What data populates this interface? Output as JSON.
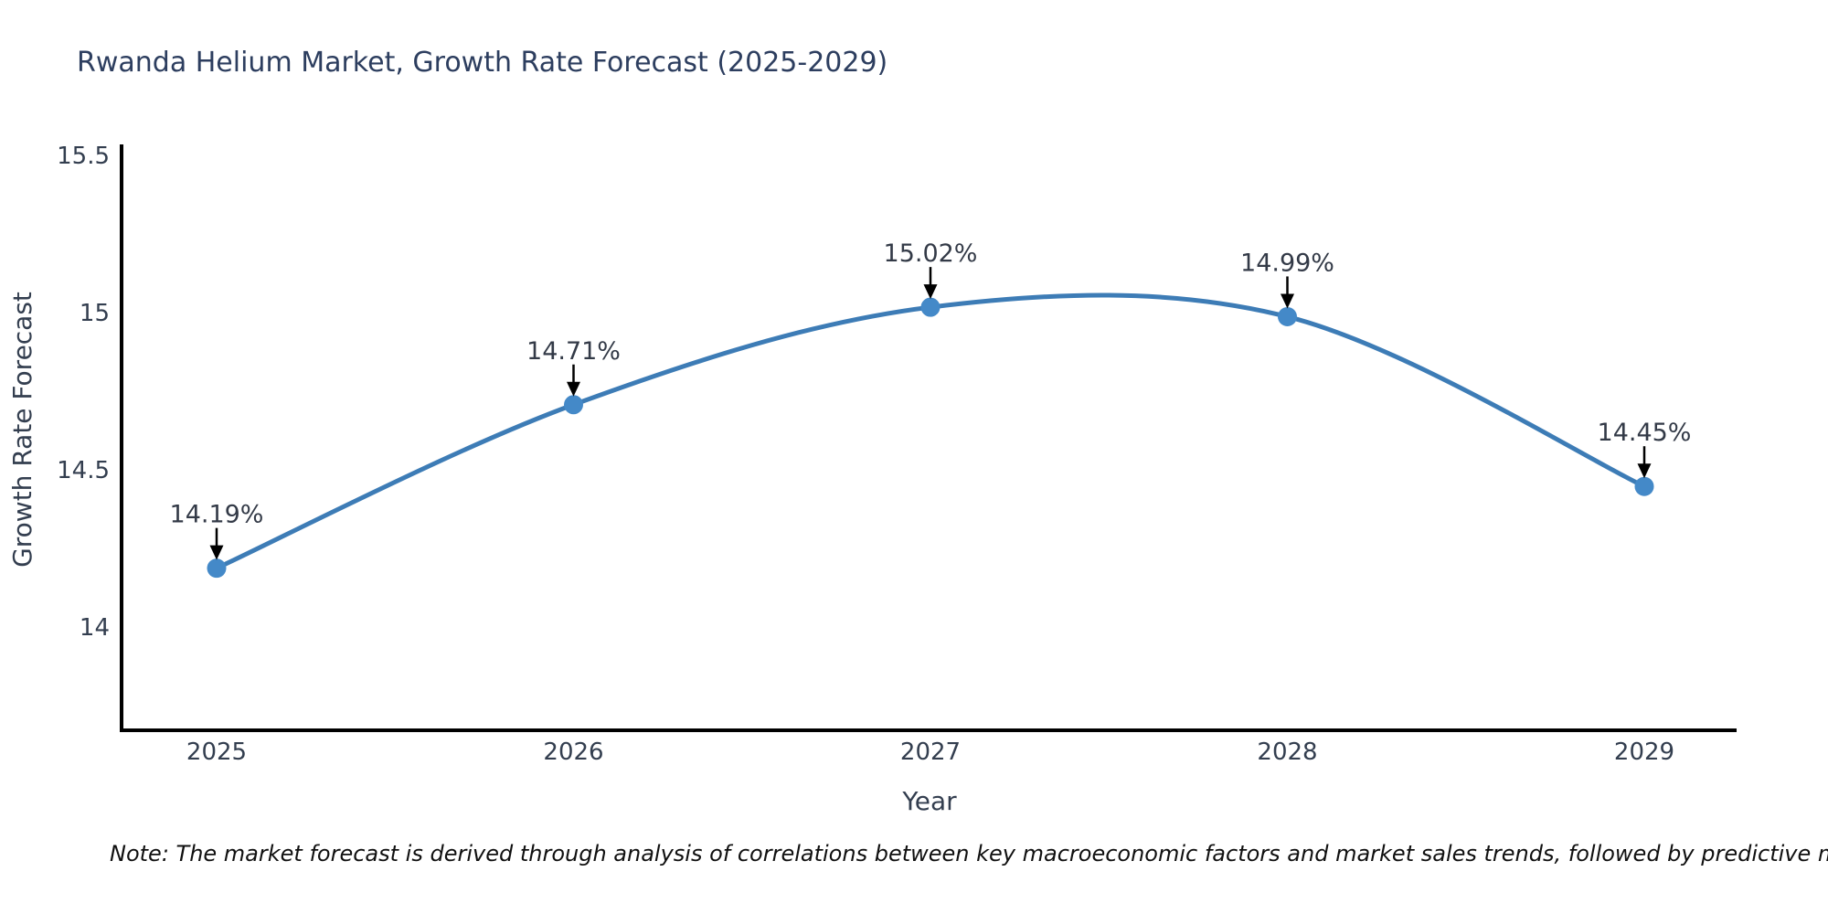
{
  "title": "Rwanda Helium Market, Growth Rate Forecast (2025-2029)",
  "note": "Note: The market forecast is derived through analysis of correlations between key macroeconomic factors and market sales trends, followed by predictive modeling to project future sal",
  "chart_data": {
    "type": "line",
    "title": "Rwanda Helium Market, Growth Rate Forecast (2025-2029)",
    "xlabel": "Year",
    "ylabel": "Growth Rate Forecast",
    "x": [
      2025,
      2026,
      2027,
      2028,
      2029
    ],
    "xtick_labels": [
      "2025",
      "2026",
      "2027",
      "2028",
      "2029"
    ],
    "values": [
      14.19,
      14.71,
      15.02,
      14.99,
      14.45
    ],
    "point_labels": [
      "14.19%",
      "14.71%",
      "15.02%",
      "14.99%",
      "14.45%"
    ],
    "yticks": [
      {
        "value": 15.5,
        "label": "15.5"
      },
      {
        "value": 15.0,
        "label": "15"
      },
      {
        "value": 14.5,
        "label": "14.5"
      },
      {
        "value": 14.0,
        "label": "14"
      }
    ],
    "ylim": [
      13.67,
      15.53
    ],
    "xlim": [
      2024.73,
      2029.26
    ],
    "grid": false,
    "legend": "none",
    "line_shape": "spline",
    "marker": "circle",
    "annotation_arrow": "down-arrow",
    "colors": {
      "line": "#3d7cb6",
      "marker": "#4489c8",
      "axis": "#000000",
      "text": "#333e4f",
      "title": "#2d3e5f",
      "annotation": "#333a47",
      "arrow": "#000000",
      "note": "#101010",
      "background": "#ffffff"
    }
  }
}
